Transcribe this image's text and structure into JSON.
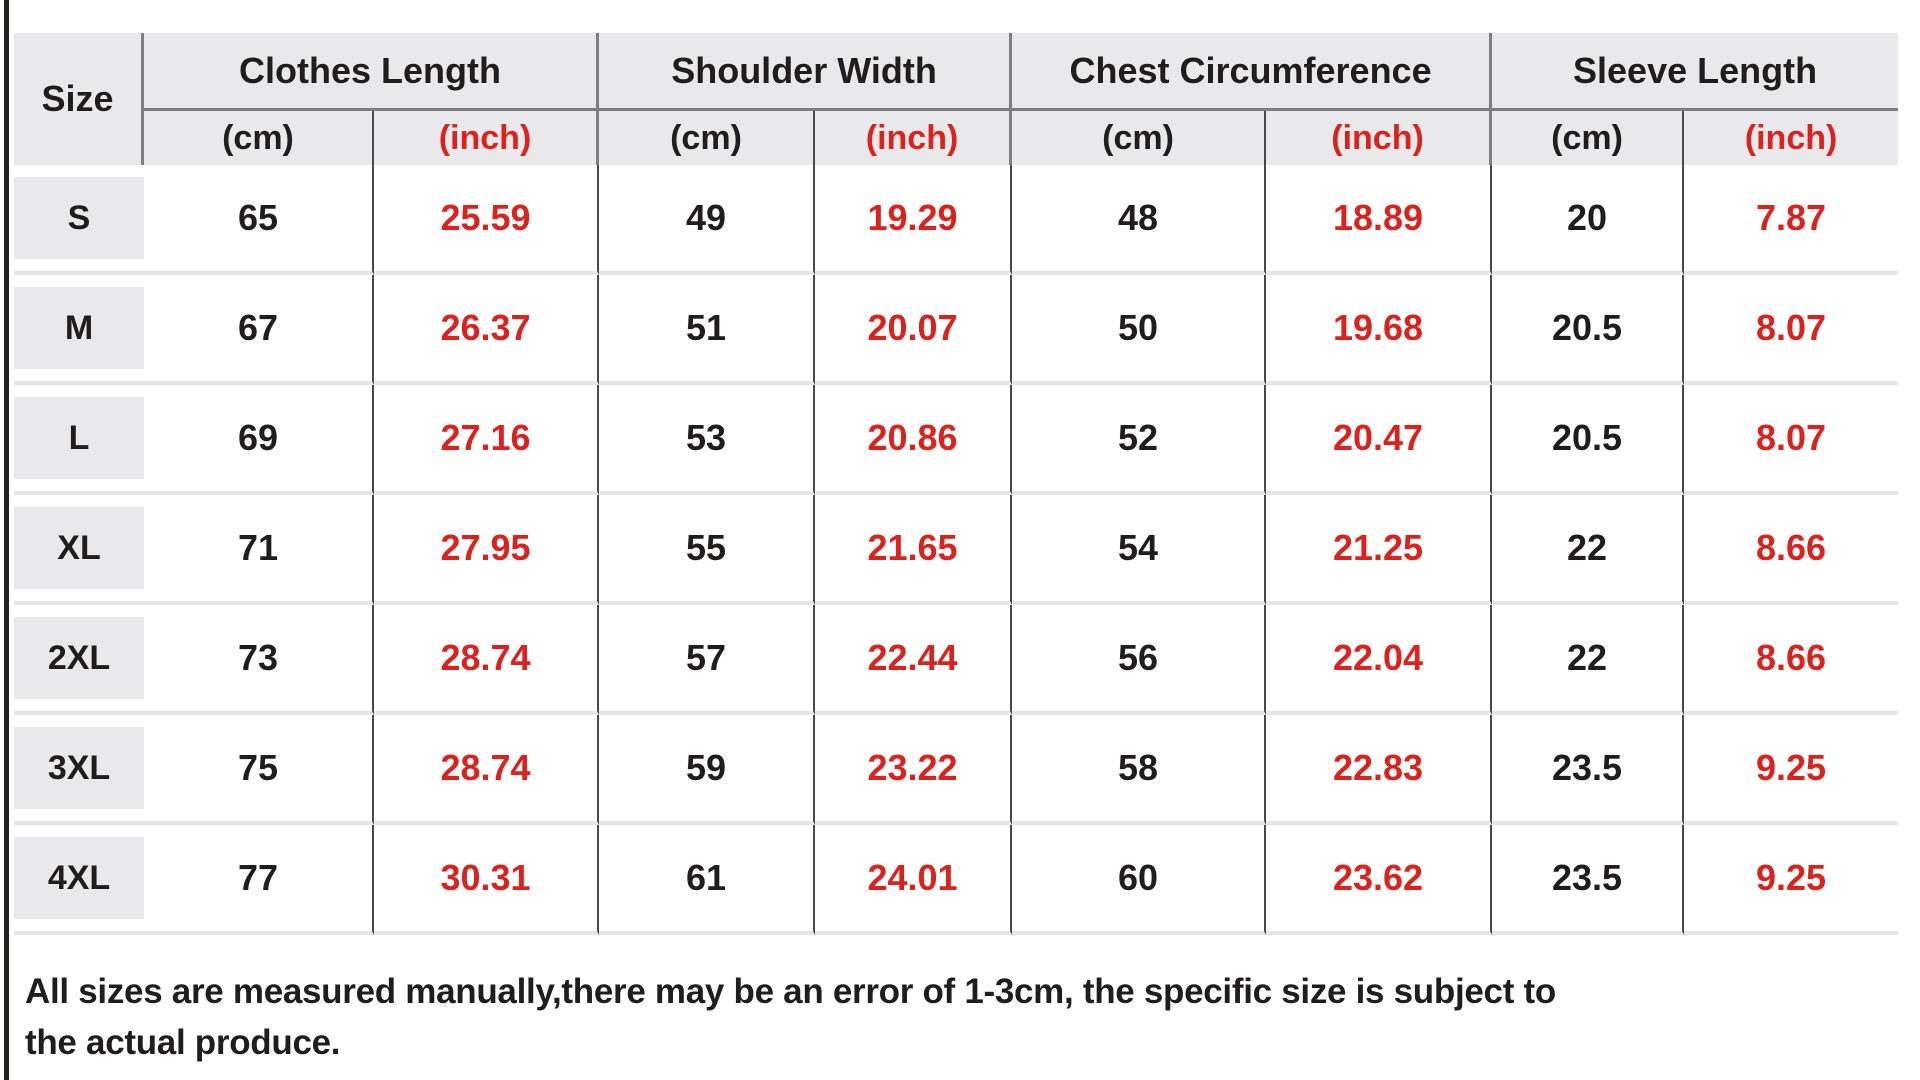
{
  "colors": {
    "page_background": "#ffffff",
    "left_edge_border": "#262120",
    "header_bg": "#e9e9eb",
    "size_cell_bg": "#e9e9eb",
    "text_black": "#201d1d",
    "accent_red": "#d8231e",
    "header_divider_gray": "#7e7e80",
    "column_divider_dark": "#4a4848",
    "row_separator_light": "#e6e6e8"
  },
  "table": {
    "corner_label": "Size",
    "groups": [
      {
        "label": "Clothes Length",
        "units": [
          "(cm)",
          "(inch)"
        ]
      },
      {
        "label": "Shoulder Width",
        "units": [
          "(cm)",
          "(inch)"
        ]
      },
      {
        "label": "Chest Circumference",
        "units": [
          "(cm)",
          "(inch)"
        ]
      },
      {
        "label": "Sleeve Length",
        "units": [
          "(cm)",
          "(inch)"
        ]
      }
    ],
    "rows": [
      {
        "size": "S",
        "values": [
          "65",
          "25.59",
          "49",
          "19.29",
          "48",
          "18.89",
          "20",
          "7.87"
        ]
      },
      {
        "size": "M",
        "values": [
          "67",
          "26.37",
          "51",
          "20.07",
          "50",
          "19.68",
          "20.5",
          "8.07"
        ]
      },
      {
        "size": "L",
        "values": [
          "69",
          "27.16",
          "53",
          "20.86",
          "52",
          "20.47",
          "20.5",
          "8.07"
        ]
      },
      {
        "size": "XL",
        "values": [
          "71",
          "27.95",
          "55",
          "21.65",
          "54",
          "21.25",
          "22",
          "8.66"
        ]
      },
      {
        "size": "2XL",
        "values": [
          "73",
          "28.74",
          "57",
          "22.44",
          "56",
          "22.04",
          "22",
          "8.66"
        ]
      },
      {
        "size": "3XL",
        "values": [
          "75",
          "28.74",
          "59",
          "23.22",
          "58",
          "22.83",
          "23.5",
          "9.25"
        ]
      },
      {
        "size": "4XL",
        "values": [
          "77",
          "30.31",
          "61",
          "24.01",
          "60",
          "23.62",
          "23.5",
          "9.25"
        ]
      }
    ]
  },
  "footer": {
    "line1": "All sizes are measured manually,there may be an error of 1-3cm, the specific size is subject to",
    "line2": "the actual produce."
  },
  "chart_data": {
    "type": "table",
    "columns": [
      "Size",
      "Clothes Length (cm)",
      "Clothes Length (inch)",
      "Shoulder Width (cm)",
      "Shoulder Width (inch)",
      "Chest Circumference (cm)",
      "Chest Circumference (inch)",
      "Sleeve Length (cm)",
      "Sleeve Length (inch)"
    ],
    "rows": [
      [
        "S",
        65,
        25.59,
        49,
        19.29,
        48,
        18.89,
        20,
        7.87
      ],
      [
        "M",
        67,
        26.37,
        51,
        20.07,
        50,
        19.68,
        20.5,
        8.07
      ],
      [
        "L",
        69,
        27.16,
        53,
        20.86,
        52,
        20.47,
        20.5,
        8.07
      ],
      [
        "XL",
        71,
        27.95,
        55,
        21.65,
        54,
        21.25,
        22,
        8.66
      ],
      [
        "2XL",
        73,
        28.74,
        57,
        22.44,
        56,
        22.04,
        22,
        8.66
      ],
      [
        "3XL",
        75,
        28.74,
        59,
        23.22,
        58,
        22.83,
        23.5,
        9.25
      ],
      [
        "4XL",
        77,
        30.31,
        61,
        24.01,
        60,
        23.62,
        23.5,
        9.25
      ]
    ],
    "note": "All sizes are measured manually,there may be an error of 1-3cm, the specific size is subject to the actual produce.",
    "unit_highlight": "inch columns rendered in red (#d8231e), cm columns in black"
  }
}
